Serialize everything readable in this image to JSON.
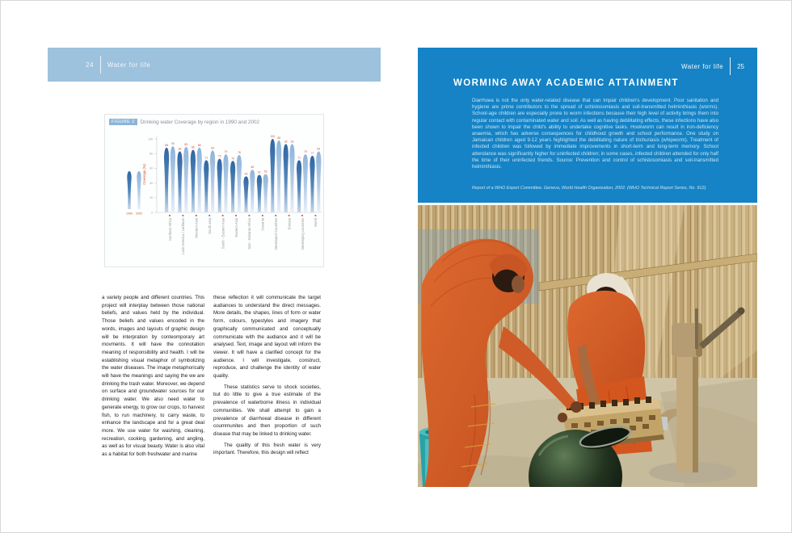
{
  "left_page": {
    "page_number": "24",
    "header_title": "Water for life",
    "figure_tag": "FIGURE 2",
    "figure_title": "Drinking water Coverage by region in 1990 and 2002",
    "column1": [
      "a variety people and different countries. This project will interplay between those national beliefs, and values held by the individual. Those beliefs and values encoded in the words, images and layouts of graphic design will be interpration by conteomporary art movments. It will have the connotation meaning of responsibility and health. I will be establishing visual metaphor of symbolizing the water diseases. The image metaphorically will have the meanings and saying the we are drinking the trash water. Moreover, we depend on surface and groundwater sources for our drinking water. We also need water to generate energy, to grow our crops, to harvest fish, to run machinery, to carry waste, to enhance the landscape and for a great deal more. We use water for washing, cleaning, recreation, cooking, gardening, and angling, as well as for visual beauty. Water is also vital as a habitat for both freshwater and marine"
    ],
    "column2": [
      "these reflection it will communicate the target audiances to understand the direct messages. More details, the shapes, lines of form or water form, colours, typestyles and imagery that graphically communicated and conceptually communicate with the audiance and it will be analysed. Text, image and layout will inform the viewer. It will have a clarified concept for the audience. I will investigate, construct, reproduce, and challenge the identity of water quality.",
      "These statistics serve to shock societies, but do little to give a true estimate of the prevalence of waterborne illness in individual communities. We shall attempt to gain a prevalence of diarrhoeal disease in different coummunites and then proportion of such disease that may be linked to drinking water.",
      "The quality of this fresh water is very important. Therefore, this design will reflect"
    ]
  },
  "right_page": {
    "page_number": "25",
    "header_title": "Water for life",
    "box_title": "WORMING AWAY ACADEMIC ATTAINMENT",
    "box_body": "Diarrhoea is not the only water-related disease that can impair children's development. Poor sanitation and hygiene are prime contributors to the spread of schistosomiasis and soil-transmitted helminthiasis (worms). School-age children are especially prone to worm infections because their high level of activity brings them into regular contact with contaminated water and soil. As well as having debilitating effects, these infections have also been shown to impair the child's ability to undertake cognitive tasks. Hookworm can result in iron-deficiency anaemia, which has adverse consequences for childhood growth and school performance. One study on Jamaican children aged 9-12 years highlighted the debilitating nature of trichuriasis (whipworm). Treatment of infected children was followed by immediate improvements in short-term and long-term memory. School attendance was significantly higher for uninfected children; in some cases, infected children attended for only half the time of their uninfected friends. Source: Prevention and control of schistosomiasis and soil-transmitted helminthiasis.",
    "box_source": "Report of a WHO Expert Committee. Geneva, World Health Organization, 2002. (WHO Technical Report Series, No. 912).",
    "photo_description": "Two women in orange saris filling a dark clay pot at a hand water pump, with a woven basket, a teal bucket and a bamboo fence behind"
  },
  "chart_data": {
    "type": "bar",
    "title": "Drinking water Coverage by region in 1990 and 2002",
    "categories": [
      "Northern Africa",
      "Latin America / caribean",
      "Western Asia",
      "South asia",
      "South - Eastern Asia",
      "Eastern Asia",
      "Sub - Saharan Africa",
      "Oceania",
      "Developed Countries",
      "Eurasia",
      "Developing countries",
      "World"
    ],
    "series": [
      {
        "name": "1990",
        "values": [
          88,
          83,
          85,
          71,
          73,
          70,
          49,
          51,
          100,
          93,
          71,
          77
        ]
      },
      {
        "name": "2002",
        "values": [
          90,
          89,
          88,
          84,
          79,
          78,
          58,
          52,
          98,
          93,
          79,
          83
        ]
      }
    ],
    "ylabel": "Coverage (%)",
    "ylim": [
      0,
      100
    ],
    "yticks": [
      0,
      20,
      40,
      60,
      80,
      100
    ],
    "grid": false,
    "legend_position": "left",
    "colors": {
      "s1990_top": "#2f66a2",
      "s1990_mid": "#5588bc",
      "s1990_bot": "#c7d9ec",
      "s2002_top": "#8fb4da",
      "s2002_mid": "#b4cce7",
      "s2002_bot": "#e9f0f8",
      "accent": "#d2522e",
      "axis": "#c4ccd2",
      "ticktext": "#99a3a9",
      "xlabel_text": "#8e9a9e"
    }
  }
}
